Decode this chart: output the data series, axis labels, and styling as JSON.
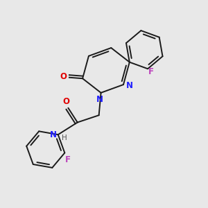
{
  "background_color": "#e8e8e8",
  "bond_color": "#1a1a1a",
  "n_color": "#2020ff",
  "o_color": "#e00000",
  "f_color": "#bb44bb",
  "lw": 1.4,
  "fs": 8.5,
  "xlim": [
    0,
    10
  ],
  "ylim": [
    0,
    10
  ],
  "figsize": [
    3.0,
    3.0
  ],
  "dpi": 100
}
